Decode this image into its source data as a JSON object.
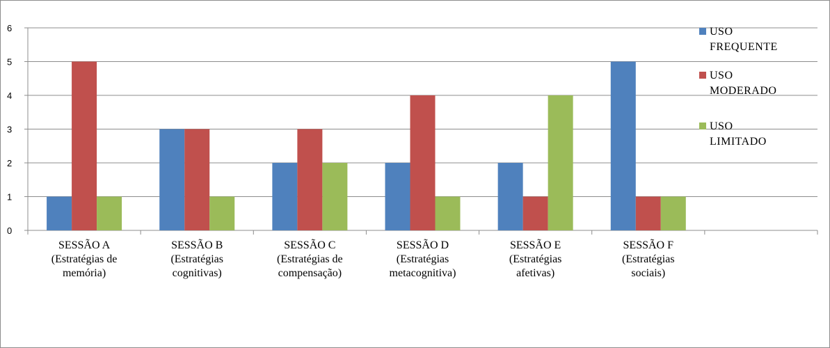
{
  "chart_data": {
    "type": "bar",
    "categories": [
      [
        "SESSÃO A",
        "(Estratégias de",
        "memória)"
      ],
      [
        "SESSÃO B",
        "(Estratégias",
        "cognitivas)"
      ],
      [
        "SESSÃO C",
        "(Estratégias de",
        "compensação)"
      ],
      [
        "SESSÃO D",
        "(Estratégias",
        "metacognitiva)"
      ],
      [
        "SESSÃO E",
        "(Estratégias",
        "afetivas)"
      ],
      [
        "SESSÃO F",
        "(Estratégias",
        "sociais)"
      ]
    ],
    "series": [
      {
        "name": [
          "USO",
          "FREQUENTE"
        ],
        "color": "#4f81bd",
        "values": [
          1,
          3,
          2,
          2,
          2,
          5
        ]
      },
      {
        "name": [
          "USO",
          "MODERADO"
        ],
        "color": "#c0504d",
        "values": [
          5,
          3,
          3,
          4,
          1,
          1
        ]
      },
      {
        "name": [
          "USO",
          "LIMITADO"
        ],
        "color": "#9bbb59",
        "values": [
          1,
          1,
          2,
          1,
          4,
          1
        ]
      }
    ],
    "ylim": [
      0,
      6
    ],
    "yticks": [
      "0",
      "1",
      "2",
      "3",
      "4",
      "5",
      "6"
    ],
    "grid": true,
    "legend_position": "right"
  }
}
